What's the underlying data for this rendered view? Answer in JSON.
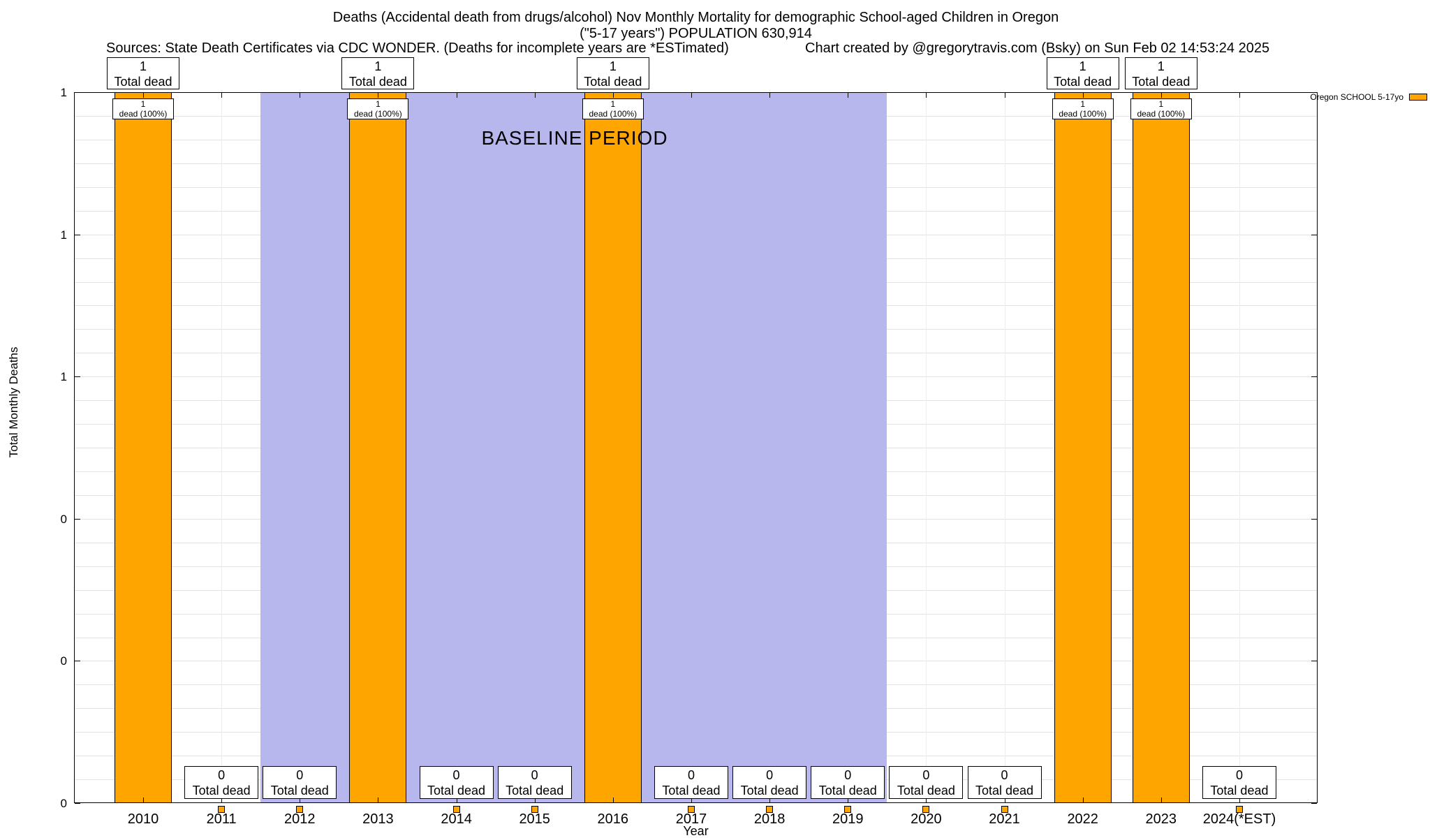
{
  "header": {
    "title_line1": "Deaths (Accidental death from drugs/alcohol) Nov Monthly Mortality for demographic School-aged Children in Oregon",
    "title_line2": "(\"5-17 years\") POPULATION 630,914",
    "sources": "Sources: State Death Certificates via CDC WONDER. (Deaths for incomplete years are *ESTimated)",
    "credit": "Chart created by @gregorytravis.com (Bsky) on Sun Feb 02 14:53:24 2025"
  },
  "legend": {
    "label": "Oregon SCHOOL 5-17yo",
    "swatch_color": "#ffa500"
  },
  "chart_data": {
    "type": "bar",
    "title": "Deaths (Accidental death from drugs/alcohol) Nov Monthly Mortality for demographic School-aged Children in Oregon (\"5-17 years\") POPULATION 630,914",
    "categories": [
      "2010",
      "2011",
      "2012",
      "2013",
      "2014",
      "2015",
      "2016",
      "2017",
      "2018",
      "2019",
      "2020",
      "2021",
      "2022",
      "2023",
      "2024(*EST)"
    ],
    "values": [
      1,
      0,
      0,
      1,
      0,
      0,
      1,
      0,
      0,
      0,
      0,
      0,
      1,
      1,
      0
    ],
    "xlabel": "Year",
    "ylabel": "Total Monthly Deaths",
    "ylim": [
      0,
      1
    ],
    "y_ticks": [
      {
        "value": 0.0,
        "label": "0"
      },
      {
        "value": 0.2,
        "label": "0"
      },
      {
        "value": 0.4,
        "label": "0"
      },
      {
        "value": 0.6,
        "label": "1"
      },
      {
        "value": 0.8,
        "label": "1"
      },
      {
        "value": 1.0,
        "label": "1"
      }
    ],
    "bar_color": "#ffa500",
    "grid": true,
    "legend_position": "top-right",
    "baseline_band": {
      "label": "BASELINE PERIOD",
      "covers_years": [
        "2012",
        "2013",
        "2014",
        "2015",
        "2016",
        "2017",
        "2018",
        "2019"
      ],
      "x_start_index": 1.5,
      "x_end_index": 9.5,
      "color": "#b7b7ee"
    },
    "annotations": {
      "total_dead_label": "Total dead",
      "dead_pct_label": "dead (100%)"
    }
  }
}
